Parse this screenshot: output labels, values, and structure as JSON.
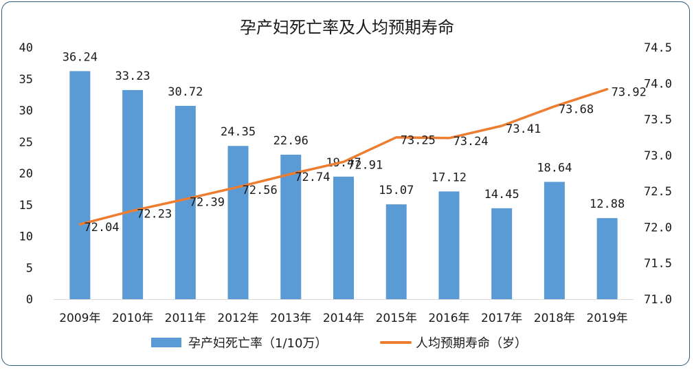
{
  "chart_data": {
    "type": "bar",
    "title": "孕产妇死亡率及人均预期寿命",
    "categories": [
      "2009年",
      "2010年",
      "2011年",
      "2012年",
      "2013年",
      "2014年",
      "2015年",
      "2016年",
      "2017年",
      "2018年",
      "2019年"
    ],
    "series": [
      {
        "name": "孕产妇死亡率（1/10万）",
        "type": "bar",
        "axis": "left",
        "color": "#5b9bd5",
        "values": [
          36.24,
          33.23,
          30.72,
          24.35,
          22.96,
          19.47,
          15.07,
          17.12,
          14.45,
          18.64,
          12.88
        ],
        "labels": [
          "36.24",
          "33.23",
          "30.72",
          "24.35",
          "22.96",
          "19.47",
          "15.07",
          "17.12",
          "14.45",
          "18.64",
          "12.88"
        ]
      },
      {
        "name": "人均预期寿命（岁）",
        "type": "line",
        "axis": "right",
        "color": "#ed7d31",
        "values": [
          72.04,
          72.23,
          72.39,
          72.56,
          72.74,
          72.91,
          73.25,
          73.24,
          73.41,
          73.68,
          73.92
        ],
        "labels": [
          "72.04",
          "72.23",
          "72.39",
          "72.56",
          "72.74",
          "72.91",
          "73.25",
          "73.24",
          "73.41",
          "73.68",
          "73.92"
        ]
      }
    ],
    "y_left": {
      "min": 0,
      "max": 40,
      "ticks": [
        "0",
        "5",
        "10",
        "15",
        "20",
        "25",
        "30",
        "35",
        "40"
      ]
    },
    "y_right": {
      "min": 71.0,
      "max": 74.5,
      "ticks": [
        "71.0",
        "71.5",
        "72.0",
        "72.5",
        "73.0",
        "73.5",
        "74.0",
        "74.5"
      ]
    },
    "grid": false,
    "legend_position": "bottom"
  }
}
